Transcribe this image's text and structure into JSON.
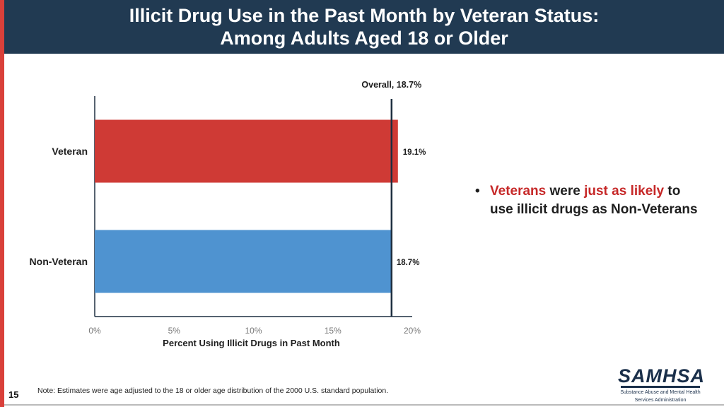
{
  "header": {
    "title_line1": "Illicit Drug Use in the Past Month by Veteran Status:",
    "title_line2": "Among Adults Aged 18 or Older"
  },
  "colors": {
    "header_bg": "#213a52",
    "veteran_bar": "#cf3a35",
    "nonveteran_bar": "#4f93d0",
    "accent_text": "#c62828",
    "axis": "#1e2f40"
  },
  "chart_data": {
    "type": "bar",
    "orientation": "horizontal",
    "categories": [
      "Veteran",
      "Non-Veteran"
    ],
    "values": [
      19.1,
      18.7
    ],
    "value_labels": [
      "19.1%",
      "18.7%"
    ],
    "reference_line": {
      "value": 18.7,
      "label": "Overall, 18.7%"
    },
    "xlabel": "Percent  Using Illicit Drugs in Past Month",
    "xlim": [
      0,
      20
    ],
    "xticks": [
      0,
      5,
      10,
      15,
      20
    ],
    "xtick_labels": [
      "0%",
      "5%",
      "10%",
      "15%",
      "20%"
    ],
    "ylabel": "",
    "title": ""
  },
  "bullet": {
    "part1": "Veterans",
    "part2": " were ",
    "part3": "just as likely",
    "part4": " to use illicit drugs as Non-Veterans"
  },
  "footer": {
    "note": "Note: Estimates were age adjusted to the 18 or older age distribution of the 2000 U.S. standard population.",
    "page_number": "15",
    "logo_word": "SAMHSA",
    "logo_line1": "Substance Abuse and Mental Health",
    "logo_line2": "Services Administration"
  }
}
